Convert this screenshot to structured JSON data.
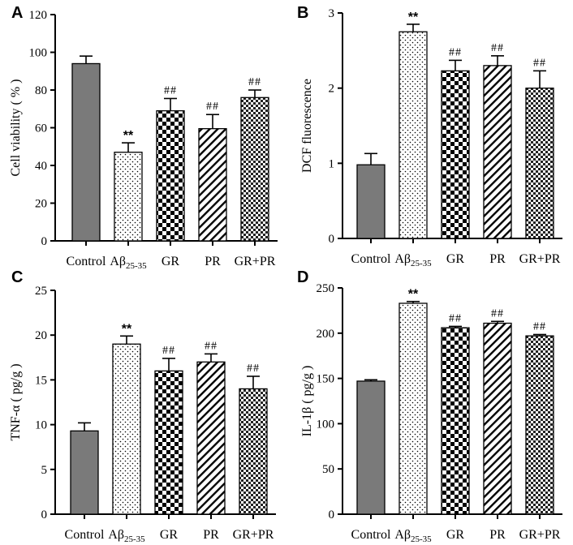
{
  "chart_data": [
    {
      "type": "bar",
      "panel_label": "A",
      "ylabel": "Cell viability ( % )",
      "ylim": [
        0,
        120
      ],
      "yticks": [
        0,
        20,
        40,
        60,
        80,
        100,
        120
      ],
      "categories": [
        "Control",
        "Aβ25-35",
        "GR",
        "PR",
        "GR+PR"
      ],
      "values": [
        94,
        47,
        69,
        59.5,
        76
      ],
      "errors": [
        4,
        5,
        6.5,
        7.5,
        4
      ],
      "annotations": [
        "",
        "**",
        "##",
        "##",
        "##"
      ]
    },
    {
      "type": "bar",
      "panel_label": "B",
      "ylabel": "DCF fluorescence",
      "ylim": [
        0,
        3
      ],
      "yticks": [
        0,
        1,
        2,
        3
      ],
      "categories": [
        "Control",
        "Aβ25-35",
        "GR",
        "PR",
        "GR+PR"
      ],
      "values": [
        0.98,
        2.75,
        2.23,
        2.3,
        2.0
      ],
      "errors": [
        0.15,
        0.1,
        0.14,
        0.13,
        0.23
      ],
      "annotations": [
        "",
        "**",
        "##",
        "##",
        "##"
      ]
    },
    {
      "type": "bar",
      "panel_label": "C",
      "ylabel": "TNF-α ( pg/g )",
      "ylim": [
        0,
        25
      ],
      "yticks": [
        0,
        5,
        10,
        15,
        20,
        25
      ],
      "categories": [
        "Control",
        "Aβ25-35",
        "GR",
        "PR",
        "GR+PR"
      ],
      "values": [
        9.3,
        19,
        16,
        17,
        14
      ],
      "errors": [
        0.9,
        0.9,
        1.4,
        0.9,
        1.4
      ],
      "annotations": [
        "",
        "**",
        "##",
        "##",
        "##"
      ]
    },
    {
      "type": "bar",
      "panel_label": "D",
      "ylabel": "IL-1β ( pg/g )",
      "ylim": [
        0,
        250
      ],
      "yticks": [
        0,
        50,
        100,
        150,
        200,
        250
      ],
      "categories": [
        "Control",
        "Aβ25-35",
        "GR",
        "PR",
        "GR+PR"
      ],
      "values": [
        147,
        233,
        206,
        211,
        197
      ],
      "errors": [
        1.5,
        2,
        1.5,
        2,
        1.5
      ],
      "annotations": [
        "",
        "**",
        "##",
        "##",
        "##"
      ]
    }
  ],
  "category_display": [
    {
      "main": "Control",
      "sub": ""
    },
    {
      "main": "Aβ",
      "sub": "25-35"
    },
    {
      "main": "GR",
      "sub": ""
    },
    {
      "main": "PR",
      "sub": ""
    },
    {
      "main": "GR+PR",
      "sub": ""
    }
  ],
  "bar_styles": [
    "solid-gray",
    "dotted",
    "checkerboard",
    "diagonal-stripes",
    "fine-checker"
  ],
  "colors": {
    "solid": "#7a7a7a",
    "ink": "#000000"
  }
}
